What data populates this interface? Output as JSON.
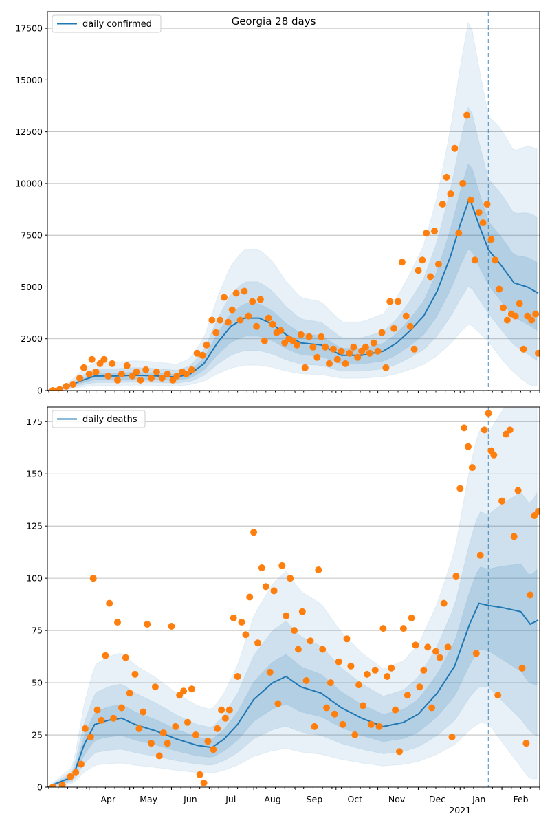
{
  "colors": {
    "line": "#1f77b4",
    "points": "#ff7f0e",
    "band": "#1f77b4",
    "grid": "#b0b0b0",
    "axes": "#000000"
  },
  "chart_data": [
    {
      "type": "line",
      "title": "Georgia 28 days",
      "legend": {
        "label": "daily confirmed",
        "placement": "top-left"
      },
      "x_months": [
        "Apr",
        "May",
        "Jun",
        "Jul",
        "Aug",
        "Sep",
        "Oct",
        "Nov",
        "Dec",
        "Jan",
        "Feb"
      ],
      "x_year_label": "2021",
      "ylim": [
        0,
        18300
      ],
      "yticks": [
        0,
        2500,
        5000,
        7500,
        10000,
        12500,
        15000,
        17500
      ],
      "vline_date": "2021-01-22",
      "model_line": [
        [
          "2020-03-01",
          0
        ],
        [
          "2020-03-15",
          150
        ],
        [
          "2020-03-25",
          450
        ],
        [
          "2020-04-05",
          700
        ],
        [
          "2020-04-20",
          700
        ],
        [
          "2020-05-05",
          740
        ],
        [
          "2020-05-20",
          710
        ],
        [
          "2020-06-05",
          650
        ],
        [
          "2020-06-15",
          800
        ],
        [
          "2020-06-25",
          1300
        ],
        [
          "2020-07-05",
          2300
        ],
        [
          "2020-07-15",
          3100
        ],
        [
          "2020-07-25",
          3500
        ],
        [
          "2020-08-05",
          3500
        ],
        [
          "2020-08-15",
          3200
        ],
        [
          "2020-08-25",
          2700
        ],
        [
          "2020-09-05",
          2300
        ],
        [
          "2020-09-20",
          2200
        ],
        [
          "2020-10-05",
          1700
        ],
        [
          "2020-10-20",
          1700
        ],
        [
          "2020-11-05",
          1900
        ],
        [
          "2020-11-15",
          2300
        ],
        [
          "2020-11-25",
          2900
        ],
        [
          "2020-12-05",
          3600
        ],
        [
          "2020-12-15",
          4800
        ],
        [
          "2020-12-25",
          6500
        ],
        [
          "2021-01-01",
          8000
        ],
        [
          "2021-01-08",
          9300
        ],
        [
          "2021-01-15",
          8000
        ],
        [
          "2021-01-22",
          6800
        ],
        [
          "2021-02-01",
          6000
        ],
        [
          "2021-02-10",
          5200
        ],
        [
          "2021-02-20",
          5000
        ],
        [
          "2021-02-28",
          4700
        ]
      ],
      "points": [
        [
          "2020-03-05",
          0
        ],
        [
          "2020-03-10",
          50
        ],
        [
          "2020-03-15",
          200
        ],
        [
          "2020-03-20",
          300
        ],
        [
          "2020-03-25",
          600
        ],
        [
          "2020-03-28",
          1100
        ],
        [
          "2020-04-01",
          800
        ],
        [
          "2020-04-03",
          1500
        ],
        [
          "2020-04-06",
          900
        ],
        [
          "2020-04-09",
          1300
        ],
        [
          "2020-04-12",
          1500
        ],
        [
          "2020-04-15",
          700
        ],
        [
          "2020-04-18",
          1300
        ],
        [
          "2020-04-22",
          500
        ],
        [
          "2020-04-25",
          800
        ],
        [
          "2020-04-29",
          1200
        ],
        [
          "2020-05-03",
          700
        ],
        [
          "2020-05-06",
          900
        ],
        [
          "2020-05-09",
          500
        ],
        [
          "2020-05-13",
          1000
        ],
        [
          "2020-05-17",
          600
        ],
        [
          "2020-05-21",
          900
        ],
        [
          "2020-05-25",
          600
        ],
        [
          "2020-05-29",
          800
        ],
        [
          "2020-06-02",
          500
        ],
        [
          "2020-06-05",
          700
        ],
        [
          "2020-06-09",
          900
        ],
        [
          "2020-06-12",
          800
        ],
        [
          "2020-06-16",
          1000
        ],
        [
          "2020-06-20",
          1800
        ],
        [
          "2020-06-24",
          1700
        ],
        [
          "2020-06-27",
          2200
        ],
        [
          "2020-07-01",
          3400
        ],
        [
          "2020-07-04",
          2800
        ],
        [
          "2020-07-07",
          3400
        ],
        [
          "2020-07-10",
          4500
        ],
        [
          "2020-07-13",
          3300
        ],
        [
          "2020-07-16",
          3900
        ],
        [
          "2020-07-19",
          4700
        ],
        [
          "2020-07-22",
          3400
        ],
        [
          "2020-07-25",
          4800
        ],
        [
          "2020-07-28",
          3600
        ],
        [
          "2020-07-31",
          4300
        ],
        [
          "2020-08-03",
          3100
        ],
        [
          "2020-08-06",
          4400
        ],
        [
          "2020-08-09",
          2400
        ],
        [
          "2020-08-12",
          3500
        ],
        [
          "2020-08-15",
          3200
        ],
        [
          "2020-08-18",
          2800
        ],
        [
          "2020-08-21",
          2900
        ],
        [
          "2020-08-24",
          2300
        ],
        [
          "2020-08-27",
          2500
        ],
        [
          "2020-08-30",
          2400
        ],
        [
          "2020-09-02",
          2200
        ],
        [
          "2020-09-05",
          2700
        ],
        [
          "2020-09-08",
          1100
        ],
        [
          "2020-09-11",
          2600
        ],
        [
          "2020-09-14",
          2100
        ],
        [
          "2020-09-17",
          1600
        ],
        [
          "2020-09-20",
          2600
        ],
        [
          "2020-09-23",
          2100
        ],
        [
          "2020-09-26",
          1300
        ],
        [
          "2020-09-29",
          2000
        ],
        [
          "2020-10-02",
          1500
        ],
        [
          "2020-10-05",
          1900
        ],
        [
          "2020-10-08",
          1300
        ],
        [
          "2020-10-11",
          1800
        ],
        [
          "2020-10-14",
          2100
        ],
        [
          "2020-10-17",
          1600
        ],
        [
          "2020-10-20",
          1900
        ],
        [
          "2020-10-23",
          2100
        ],
        [
          "2020-10-26",
          1800
        ],
        [
          "2020-10-29",
          2300
        ],
        [
          "2020-11-01",
          1900
        ],
        [
          "2020-11-04",
          2800
        ],
        [
          "2020-11-07",
          1100
        ],
        [
          "2020-11-10",
          4300
        ],
        [
          "2020-11-13",
          3000
        ],
        [
          "2020-11-16",
          4300
        ],
        [
          "2020-11-19",
          6200
        ],
        [
          "2020-11-22",
          3600
        ],
        [
          "2020-11-25",
          3100
        ],
        [
          "2020-11-28",
          2000
        ],
        [
          "2020-12-01",
          5800
        ],
        [
          "2020-12-04",
          6300
        ],
        [
          "2020-12-07",
          7600
        ],
        [
          "2020-12-10",
          5500
        ],
        [
          "2020-12-13",
          7700
        ],
        [
          "2020-12-16",
          6100
        ],
        [
          "2020-12-19",
          9000
        ],
        [
          "2020-12-22",
          10300
        ],
        [
          "2020-12-25",
          9500
        ],
        [
          "2020-12-28",
          11700
        ],
        [
          "2020-12-31",
          7600
        ],
        [
          "2021-01-03",
          10000
        ],
        [
          "2021-01-06",
          13300
        ],
        [
          "2021-01-09",
          9200
        ],
        [
          "2021-01-12",
          6300
        ],
        [
          "2021-01-15",
          8600
        ],
        [
          "2021-01-18",
          8100
        ],
        [
          "2021-01-21",
          9000
        ],
        [
          "2021-01-24",
          7300
        ],
        [
          "2021-01-27",
          6300
        ],
        [
          "2021-01-30",
          4900
        ],
        [
          "2021-02-02",
          4000
        ],
        [
          "2021-02-05",
          3400
        ],
        [
          "2021-02-08",
          3700
        ],
        [
          "2021-02-11",
          3600
        ],
        [
          "2021-02-14",
          4200
        ],
        [
          "2021-02-17",
          2000
        ],
        [
          "2021-02-20",
          3600
        ],
        [
          "2021-02-23",
          3400
        ],
        [
          "2021-02-26",
          3700
        ],
        [
          "2021-02-28",
          1800
        ]
      ]
    },
    {
      "type": "line",
      "title": "",
      "legend": {
        "label": "daily deaths",
        "placement": "top-left"
      },
      "x_months": [
        "Apr",
        "May",
        "Jun",
        "Jul",
        "Aug",
        "Sep",
        "Oct",
        "Nov",
        "Dec",
        "Jan",
        "Feb"
      ],
      "x_year_label": "2021",
      "ylim": [
        0,
        182
      ],
      "yticks": [
        0,
        25,
        50,
        75,
        100,
        125,
        150,
        175
      ],
      "vline_date": "2021-01-22",
      "model_line": [
        [
          "2020-03-01",
          0
        ],
        [
          "2020-03-20",
          5
        ],
        [
          "2020-03-28",
          20
        ],
        [
          "2020-04-05",
          30
        ],
        [
          "2020-04-15",
          32
        ],
        [
          "2020-04-25",
          33
        ],
        [
          "2020-05-05",
          30
        ],
        [
          "2020-05-20",
          27
        ],
        [
          "2020-06-05",
          23
        ],
        [
          "2020-06-20",
          20
        ],
        [
          "2020-07-01",
          19
        ],
        [
          "2020-07-10",
          23
        ],
        [
          "2020-07-20",
          30
        ],
        [
          "2020-08-01",
          42
        ],
        [
          "2020-08-15",
          50
        ],
        [
          "2020-08-25",
          53
        ],
        [
          "2020-09-05",
          48
        ],
        [
          "2020-09-20",
          45
        ],
        [
          "2020-10-05",
          38
        ],
        [
          "2020-10-20",
          33
        ],
        [
          "2020-11-05",
          29
        ],
        [
          "2020-11-20",
          31
        ],
        [
          "2020-12-01",
          35
        ],
        [
          "2020-12-15",
          45
        ],
        [
          "2020-12-28",
          58
        ],
        [
          "2021-01-08",
          78
        ],
        [
          "2021-01-15",
          88
        ],
        [
          "2021-01-22",
          87
        ],
        [
          "2021-02-01",
          86
        ],
        [
          "2021-02-15",
          84
        ],
        [
          "2021-02-22",
          78
        ],
        [
          "2021-02-28",
          80
        ]
      ],
      "points": [
        [
          "2020-03-05",
          0
        ],
        [
          "2020-03-12",
          1
        ],
        [
          "2020-03-18",
          5
        ],
        [
          "2020-03-22",
          7
        ],
        [
          "2020-03-26",
          11
        ],
        [
          "2020-03-29",
          28
        ],
        [
          "2020-04-02",
          24
        ],
        [
          "2020-04-04",
          100
        ],
        [
          "2020-04-07",
          37
        ],
        [
          "2020-04-10",
          32
        ],
        [
          "2020-04-13",
          63
        ],
        [
          "2020-04-16",
          88
        ],
        [
          "2020-04-19",
          33
        ],
        [
          "2020-04-22",
          79
        ],
        [
          "2020-04-25",
          38
        ],
        [
          "2020-04-28",
          62
        ],
        [
          "2020-05-01",
          45
        ],
        [
          "2020-05-05",
          54
        ],
        [
          "2020-05-08",
          28
        ],
        [
          "2020-05-11",
          36
        ],
        [
          "2020-05-14",
          78
        ],
        [
          "2020-05-17",
          21
        ],
        [
          "2020-05-20",
          48
        ],
        [
          "2020-05-23",
          15
        ],
        [
          "2020-05-26",
          26
        ],
        [
          "2020-05-29",
          21
        ],
        [
          "2020-06-01",
          77
        ],
        [
          "2020-06-04",
          29
        ],
        [
          "2020-06-07",
          44
        ],
        [
          "2020-06-10",
          46
        ],
        [
          "2020-06-13",
          31
        ],
        [
          "2020-06-16",
          47
        ],
        [
          "2020-06-19",
          25
        ],
        [
          "2020-06-22",
          6
        ],
        [
          "2020-06-25",
          2
        ],
        [
          "2020-06-28",
          22
        ],
        [
          "2020-07-02",
          18
        ],
        [
          "2020-07-05",
          28
        ],
        [
          "2020-07-08",
          37
        ],
        [
          "2020-07-11",
          33
        ],
        [
          "2020-07-14",
          37
        ],
        [
          "2020-07-17",
          81
        ],
        [
          "2020-07-20",
          53
        ],
        [
          "2020-07-23",
          79
        ],
        [
          "2020-07-26",
          73
        ],
        [
          "2020-07-29",
          91
        ],
        [
          "2020-08-01",
          122
        ],
        [
          "2020-08-04",
          69
        ],
        [
          "2020-08-07",
          105
        ],
        [
          "2020-08-10",
          96
        ],
        [
          "2020-08-13",
          55
        ],
        [
          "2020-08-16",
          94
        ],
        [
          "2020-08-19",
          40
        ],
        [
          "2020-08-22",
          106
        ],
        [
          "2020-08-25",
          82
        ],
        [
          "2020-08-28",
          100
        ],
        [
          "2020-08-31",
          75
        ],
        [
          "2020-09-03",
          66
        ],
        [
          "2020-09-06",
          84
        ],
        [
          "2020-09-09",
          51
        ],
        [
          "2020-09-12",
          70
        ],
        [
          "2020-09-15",
          29
        ],
        [
          "2020-09-18",
          104
        ],
        [
          "2020-09-21",
          66
        ],
        [
          "2020-09-24",
          38
        ],
        [
          "2020-09-27",
          50
        ],
        [
          "2020-09-30",
          35
        ],
        [
          "2020-10-03",
          60
        ],
        [
          "2020-10-06",
          30
        ],
        [
          "2020-10-09",
          71
        ],
        [
          "2020-10-12",
          58
        ],
        [
          "2020-10-15",
          25
        ],
        [
          "2020-10-18",
          49
        ],
        [
          "2020-10-21",
          39
        ],
        [
          "2020-10-24",
          54
        ],
        [
          "2020-10-27",
          30
        ],
        [
          "2020-10-30",
          56
        ],
        [
          "2020-11-02",
          29
        ],
        [
          "2020-11-05",
          76
        ],
        [
          "2020-11-08",
          53
        ],
        [
          "2020-11-11",
          57
        ],
        [
          "2020-11-14",
          37
        ],
        [
          "2020-11-17",
          17
        ],
        [
          "2020-11-20",
          76
        ],
        [
          "2020-11-23",
          44
        ],
        [
          "2020-11-26",
          81
        ],
        [
          "2020-11-29",
          68
        ],
        [
          "2020-12-02",
          48
        ],
        [
          "2020-12-05",
          56
        ],
        [
          "2020-12-08",
          67
        ],
        [
          "2020-12-11",
          38
        ],
        [
          "2020-12-14",
          65
        ],
        [
          "2020-12-17",
          62
        ],
        [
          "2020-12-20",
          88
        ],
        [
          "2020-12-23",
          67
        ],
        [
          "2020-12-26",
          24
        ],
        [
          "2020-12-29",
          101
        ],
        [
          "2021-01-01",
          143
        ],
        [
          "2021-01-04",
          172
        ],
        [
          "2021-01-07",
          163
        ],
        [
          "2021-01-10",
          153
        ],
        [
          "2021-01-13",
          64
        ],
        [
          "2021-01-16",
          111
        ],
        [
          "2021-01-19",
          171
        ],
        [
          "2021-01-22",
          179
        ],
        [
          "2021-01-24",
          161
        ],
        [
          "2021-01-26",
          159
        ],
        [
          "2021-01-29",
          44
        ],
        [
          "2021-02-01",
          137
        ],
        [
          "2021-02-04",
          169
        ],
        [
          "2021-02-07",
          171
        ],
        [
          "2021-02-10",
          120
        ],
        [
          "2021-02-13",
          142
        ],
        [
          "2021-02-16",
          57
        ],
        [
          "2021-02-19",
          21
        ],
        [
          "2021-02-22",
          92
        ],
        [
          "2021-02-25",
          130
        ],
        [
          "2021-02-28",
          132
        ]
      ]
    }
  ]
}
